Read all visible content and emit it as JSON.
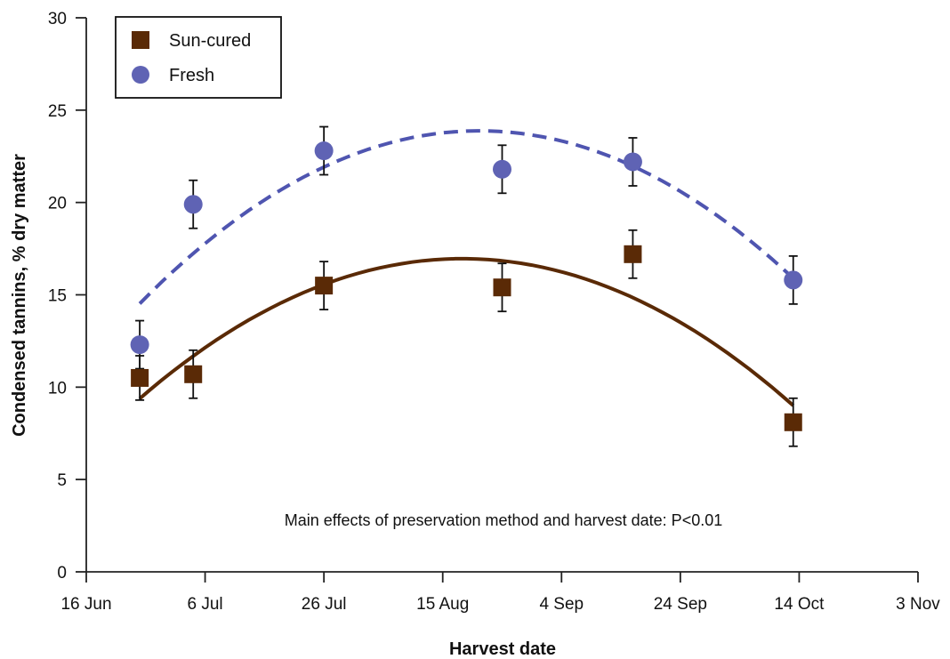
{
  "chart_data": {
    "type": "scatter",
    "xlabel": "Harvest date",
    "ylabel": "Condensed tannins, % dry matter",
    "x_ticks": [
      "16 Jun",
      "6 Jul",
      "26 Jul",
      "15 Aug",
      "4 Sep",
      "24 Sep",
      "14 Oct",
      "3 Nov"
    ],
    "x_range": [
      "16 Jun",
      "3 Nov"
    ],
    "ylim": [
      0,
      30
    ],
    "y_ticks": [
      "0",
      "5",
      "10",
      "15",
      "20",
      "25",
      "30"
    ],
    "legend_position": "top-left",
    "annotation": "Main effects of preservation method and harvest date: P<0.01",
    "series": [
      {
        "name": "Sun-cured",
        "marker": "square",
        "color": "#5a2a06",
        "trend": "solid",
        "points": [
          {
            "x": "25 Jun",
            "y": 10.5,
            "err": 1.2
          },
          {
            "x": "4 Jul",
            "y": 10.7,
            "err": 1.3
          },
          {
            "x": "26 Jul",
            "y": 15.5,
            "err": 1.3
          },
          {
            "x": "25 Aug",
            "y": 15.4,
            "err": 1.3
          },
          {
            "x": "16 Sep",
            "y": 17.2,
            "err": 1.3
          },
          {
            "x": "13 Oct",
            "y": 8.1,
            "err": 1.3
          }
        ],
        "trend_points": [
          {
            "x": "25 Jun",
            "y": 9.4
          },
          {
            "x": "26 Jul",
            "y": 15.5
          },
          {
            "x": "17 Aug",
            "y": 17.0
          },
          {
            "x": "13 Oct",
            "y": 9.0
          }
        ]
      },
      {
        "name": "Fresh",
        "marker": "circle",
        "color": "#5f63b4",
        "trend": "dashed",
        "points": [
          {
            "x": "25 Jun",
            "y": 12.3,
            "err": 1.3
          },
          {
            "x": "4 Jul",
            "y": 19.9,
            "err": 1.3
          },
          {
            "x": "26 Jul",
            "y": 22.8,
            "err": 1.3
          },
          {
            "x": "25 Aug",
            "y": 21.8,
            "err": 1.3
          },
          {
            "x": "16 Sep",
            "y": 22.2,
            "err": 1.3
          },
          {
            "x": "13 Oct",
            "y": 15.8,
            "err": 1.3
          }
        ],
        "trend_points": [
          {
            "x": "25 Jun",
            "y": 14.5
          },
          {
            "x": "26 Jul",
            "y": 22.0
          },
          {
            "x": "19 Aug",
            "y": 23.8
          },
          {
            "x": "13 Oct",
            "y": 15.9
          }
        ]
      }
    ]
  }
}
